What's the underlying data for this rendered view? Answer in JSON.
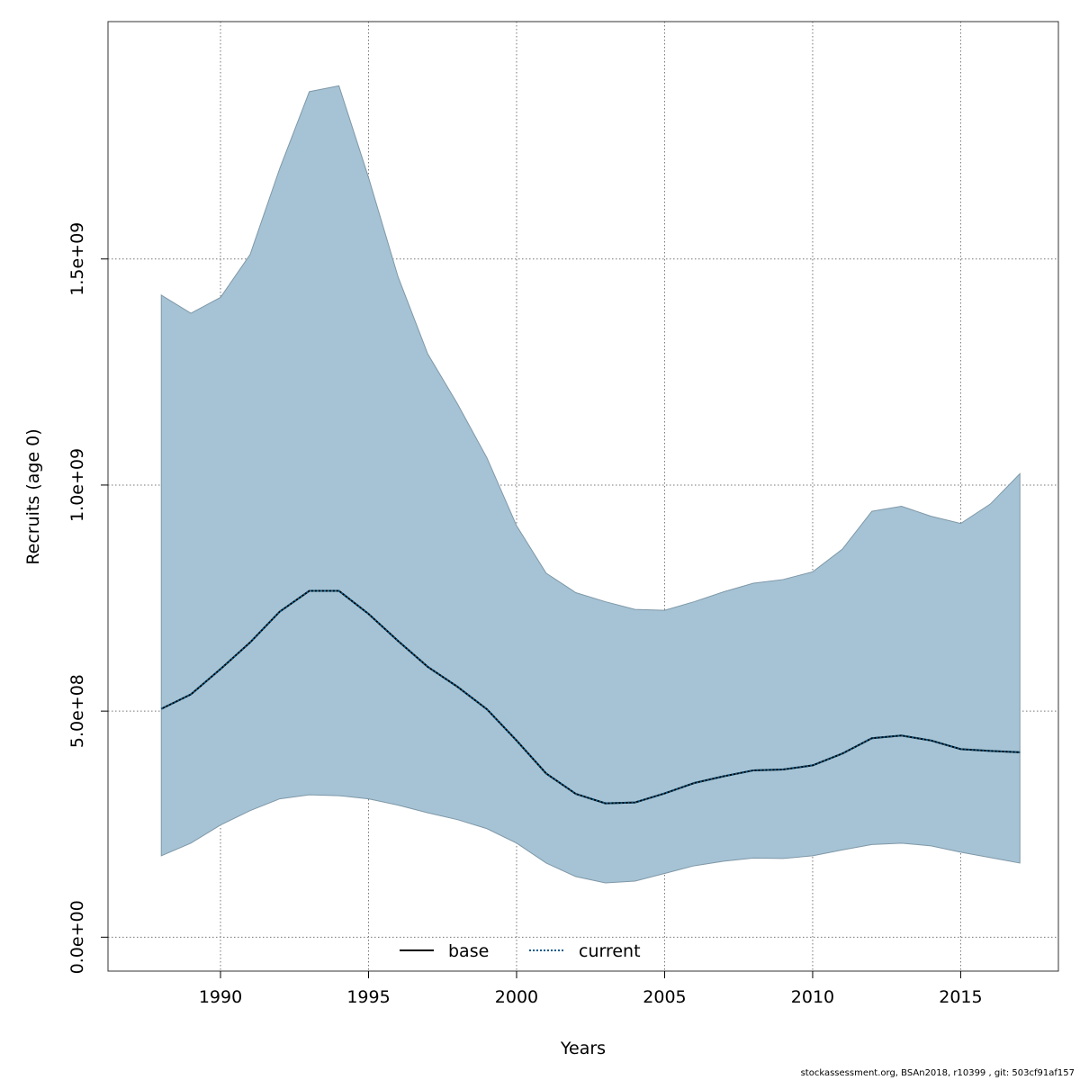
{
  "chart_data": {
    "type": "area",
    "xlabel": "Years",
    "ylabel": "Recruits (age 0)",
    "xlim": [
      1986.2,
      2018.3
    ],
    "ylim": [
      -75000000,
      2025000000
    ],
    "x_ticks": [
      1990,
      1995,
      2000,
      2005,
      2010,
      2015
    ],
    "x_tick_labels": [
      "1990",
      "1995",
      "2000",
      "2005",
      "2010",
      "2015"
    ],
    "y_ticks": [
      0,
      500000000,
      1000000000,
      1500000000
    ],
    "y_tick_labels": [
      "0.0e+00",
      "5.0e+08",
      "1.0e+09",
      "1.5e+09"
    ],
    "grid": true,
    "legend_placement": "bottom",
    "x": [
      1988,
      1989,
      1990,
      1991,
      1992,
      1993,
      1994,
      1995,
      1996,
      1997,
      1998,
      1999,
      2000,
      2001,
      2002,
      2003,
      2004,
      2005,
      2006,
      2007,
      2008,
      2009,
      2010,
      2011,
      2012,
      2013,
      2014,
      2015,
      2016,
      2017
    ],
    "band": {
      "color": "#a5c3d4",
      "upper": [
        1420000000,
        1380000000,
        1415000000,
        1510000000,
        1700000000,
        1870000000,
        1883000000,
        1680000000,
        1460000000,
        1290000000,
        1180000000,
        1060000000,
        910000000,
        805000000,
        762000000,
        742000000,
        725000000,
        723000000,
        742000000,
        764000000,
        783000000,
        791000000,
        808000000,
        858000000,
        942000000,
        953000000,
        931000000,
        915000000,
        958000000,
        1025000000
      ],
      "lower": [
        180000000,
        208000000,
        248000000,
        280000000,
        306000000,
        315000000,
        313000000,
        306000000,
        292000000,
        275000000,
        260000000,
        240000000,
        208000000,
        164000000,
        134000000,
        120000000,
        124000000,
        141000000,
        158000000,
        168000000,
        175000000,
        174000000,
        180000000,
        193000000,
        205000000,
        208000000,
        202000000,
        188000000,
        176000000,
        164000000
      ]
    },
    "series": [
      {
        "name": "base",
        "color": "#000000",
        "dash": "solid",
        "values": [
          505000000,
          537000000,
          593000000,
          652000000,
          720000000,
          766000000,
          766000000,
          715000000,
          655000000,
          598000000,
          554000000,
          504000000,
          435000000,
          362000000,
          317000000,
          296000000,
          298000000,
          318000000,
          341000000,
          356000000,
          369000000,
          371000000,
          380000000,
          406000000,
          440000000,
          446000000,
          435000000,
          416000000,
          412000000,
          409000000
        ]
      },
      {
        "name": "current",
        "color": "#0a5a8a",
        "dash": "dotted",
        "values": [
          505000000,
          537000000,
          593000000,
          652000000,
          720000000,
          766000000,
          766000000,
          715000000,
          655000000,
          598000000,
          554000000,
          504000000,
          435000000,
          362000000,
          317000000,
          296000000,
          298000000,
          318000000,
          341000000,
          356000000,
          369000000,
          371000000,
          380000000,
          406000000,
          440000000,
          446000000,
          435000000,
          416000000,
          412000000,
          409000000
        ]
      }
    ]
  },
  "footer": "stockassessment.org, BSAn2018, r10399 , git: 503cf91af157"
}
